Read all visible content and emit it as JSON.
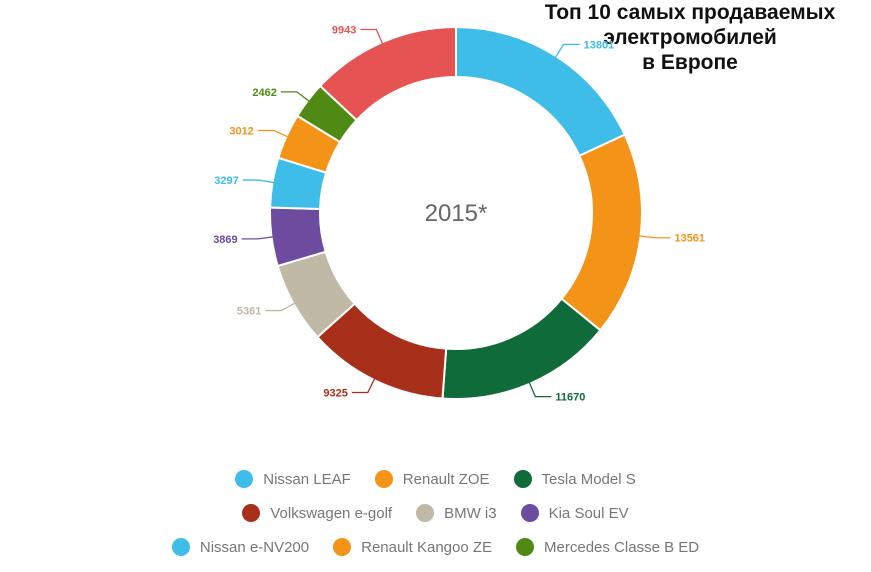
{
  "title": "Топ 10 самых продаваемых\nэлектромобилей\nв Европе",
  "chart_data": {
    "type": "pie",
    "center_label": "2015*",
    "series": [
      {
        "name": "Nissan LEAF",
        "value": 13801,
        "color": "#3DBDE8"
      },
      {
        "name": "Renault ZOE",
        "value": 13561,
        "color": "#F39419"
      },
      {
        "name": "Tesla Model S",
        "value": 11670,
        "color": "#0F6B3A"
      },
      {
        "name": "Volkswagen e-golf",
        "value": 9325,
        "color": "#A8301A"
      },
      {
        "name": "BMW i3",
        "value": 5361,
        "color": "#BFB9A6"
      },
      {
        "name": "Kia Soul EV",
        "value": 3869,
        "color": "#6D4C9F"
      },
      {
        "name": "Nissan e-NV200",
        "value": 3297,
        "color": "#3DBDE8"
      },
      {
        "name": "Renault Kangoo ZE",
        "value": 3012,
        "color": "#F39419"
      },
      {
        "name": "Mercedes Classe B ED",
        "value": 2462,
        "color": "#4F8A14"
      },
      {
        "name": "",
        "value": 9943,
        "color": "#E55353"
      }
    ],
    "legend_rows": [
      [
        "Nissan LEAF",
        "Renault ZOE",
        "Tesla Model S"
      ],
      [
        "Volkswagen e-golf",
        "BMW i3",
        "Kia Soul EV"
      ],
      [
        "Nissan e-NV200",
        "Renault Kangoo ZE",
        "Mercedes Classe B ED"
      ]
    ],
    "legend_position": "bottom"
  }
}
